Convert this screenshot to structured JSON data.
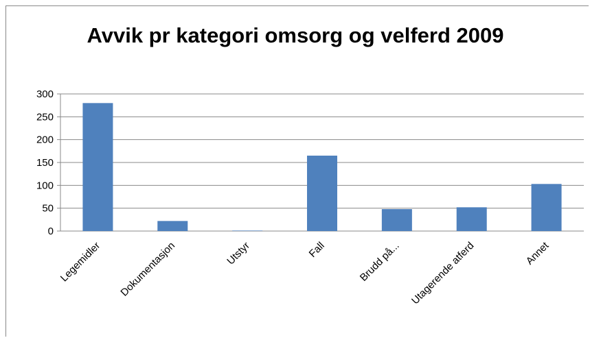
{
  "chart_data": {
    "type": "bar",
    "title": "Avvik pr kategori omsorg og velferd 2009",
    "categories": [
      "Legemidler",
      "Dokumentasjon",
      "Utstyr",
      "Fall",
      "Brudd på...",
      "Utagerende atferd",
      "Annet"
    ],
    "values": [
      280,
      22,
      1,
      165,
      48,
      52,
      103
    ],
    "color": "#4f81bd",
    "ylim": [
      0,
      300
    ],
    "yticks": [
      0,
      50,
      100,
      150,
      200,
      250,
      300
    ],
    "grid": true
  }
}
